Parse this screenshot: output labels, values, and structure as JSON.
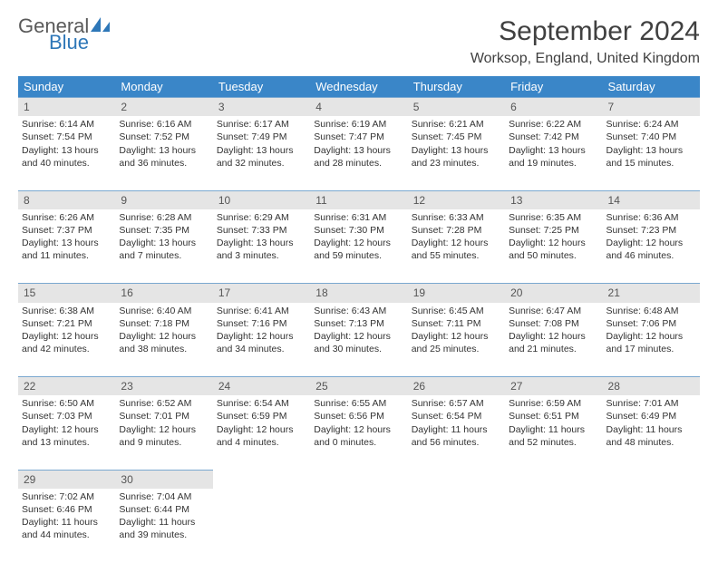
{
  "logo": {
    "text_general": "General",
    "text_blue": "Blue",
    "icon_color": "#2e77b8"
  },
  "header": {
    "month_title": "September 2024",
    "location": "Worksop, England, United Kingdom"
  },
  "styling": {
    "header_bg": "#3a86c8",
    "header_text": "#ffffff",
    "daynum_bg": "#e5e5e5",
    "daynum_border": "#7aa8d0",
    "body_text": "#333333",
    "page_bg": "#ffffff",
    "title_color": "#404040",
    "cell_fontsize": 10.5,
    "title_fontsize": 30,
    "location_fontsize": 16,
    "header_fontsize": 13
  },
  "columns": [
    "Sunday",
    "Monday",
    "Tuesday",
    "Wednesday",
    "Thursday",
    "Friday",
    "Saturday"
  ],
  "weeks": [
    {
      "nums": [
        "1",
        "2",
        "3",
        "4",
        "5",
        "6",
        "7"
      ],
      "cells": [
        {
          "sunrise": "6:14 AM",
          "sunset": "7:54 PM",
          "dl1": "13 hours",
          "dl2": "and 40 minutes."
        },
        {
          "sunrise": "6:16 AM",
          "sunset": "7:52 PM",
          "dl1": "13 hours",
          "dl2": "and 36 minutes."
        },
        {
          "sunrise": "6:17 AM",
          "sunset": "7:49 PM",
          "dl1": "13 hours",
          "dl2": "and 32 minutes."
        },
        {
          "sunrise": "6:19 AM",
          "sunset": "7:47 PM",
          "dl1": "13 hours",
          "dl2": "and 28 minutes."
        },
        {
          "sunrise": "6:21 AM",
          "sunset": "7:45 PM",
          "dl1": "13 hours",
          "dl2": "and 23 minutes."
        },
        {
          "sunrise": "6:22 AM",
          "sunset": "7:42 PM",
          "dl1": "13 hours",
          "dl2": "and 19 minutes."
        },
        {
          "sunrise": "6:24 AM",
          "sunset": "7:40 PM",
          "dl1": "13 hours",
          "dl2": "and 15 minutes."
        }
      ]
    },
    {
      "nums": [
        "8",
        "9",
        "10",
        "11",
        "12",
        "13",
        "14"
      ],
      "cells": [
        {
          "sunrise": "6:26 AM",
          "sunset": "7:37 PM",
          "dl1": "13 hours",
          "dl2": "and 11 minutes."
        },
        {
          "sunrise": "6:28 AM",
          "sunset": "7:35 PM",
          "dl1": "13 hours",
          "dl2": "and 7 minutes."
        },
        {
          "sunrise": "6:29 AM",
          "sunset": "7:33 PM",
          "dl1": "13 hours",
          "dl2": "and 3 minutes."
        },
        {
          "sunrise": "6:31 AM",
          "sunset": "7:30 PM",
          "dl1": "12 hours",
          "dl2": "and 59 minutes."
        },
        {
          "sunrise": "6:33 AM",
          "sunset": "7:28 PM",
          "dl1": "12 hours",
          "dl2": "and 55 minutes."
        },
        {
          "sunrise": "6:35 AM",
          "sunset": "7:25 PM",
          "dl1": "12 hours",
          "dl2": "and 50 minutes."
        },
        {
          "sunrise": "6:36 AM",
          "sunset": "7:23 PM",
          "dl1": "12 hours",
          "dl2": "and 46 minutes."
        }
      ]
    },
    {
      "nums": [
        "15",
        "16",
        "17",
        "18",
        "19",
        "20",
        "21"
      ],
      "cells": [
        {
          "sunrise": "6:38 AM",
          "sunset": "7:21 PM",
          "dl1": "12 hours",
          "dl2": "and 42 minutes."
        },
        {
          "sunrise": "6:40 AM",
          "sunset": "7:18 PM",
          "dl1": "12 hours",
          "dl2": "and 38 minutes."
        },
        {
          "sunrise": "6:41 AM",
          "sunset": "7:16 PM",
          "dl1": "12 hours",
          "dl2": "and 34 minutes."
        },
        {
          "sunrise": "6:43 AM",
          "sunset": "7:13 PM",
          "dl1": "12 hours",
          "dl2": "and 30 minutes."
        },
        {
          "sunrise": "6:45 AM",
          "sunset": "7:11 PM",
          "dl1": "12 hours",
          "dl2": "and 25 minutes."
        },
        {
          "sunrise": "6:47 AM",
          "sunset": "7:08 PM",
          "dl1": "12 hours",
          "dl2": "and 21 minutes."
        },
        {
          "sunrise": "6:48 AM",
          "sunset": "7:06 PM",
          "dl1": "12 hours",
          "dl2": "and 17 minutes."
        }
      ]
    },
    {
      "nums": [
        "22",
        "23",
        "24",
        "25",
        "26",
        "27",
        "28"
      ],
      "cells": [
        {
          "sunrise": "6:50 AM",
          "sunset": "7:03 PM",
          "dl1": "12 hours",
          "dl2": "and 13 minutes."
        },
        {
          "sunrise": "6:52 AM",
          "sunset": "7:01 PM",
          "dl1": "12 hours",
          "dl2": "and 9 minutes."
        },
        {
          "sunrise": "6:54 AM",
          "sunset": "6:59 PM",
          "dl1": "12 hours",
          "dl2": "and 4 minutes."
        },
        {
          "sunrise": "6:55 AM",
          "sunset": "6:56 PM",
          "dl1": "12 hours",
          "dl2": "and 0 minutes."
        },
        {
          "sunrise": "6:57 AM",
          "sunset": "6:54 PM",
          "dl1": "11 hours",
          "dl2": "and 56 minutes."
        },
        {
          "sunrise": "6:59 AM",
          "sunset": "6:51 PM",
          "dl1": "11 hours",
          "dl2": "and 52 minutes."
        },
        {
          "sunrise": "7:01 AM",
          "sunset": "6:49 PM",
          "dl1": "11 hours",
          "dl2": "and 48 minutes."
        }
      ]
    },
    {
      "nums": [
        "29",
        "30",
        "",
        "",
        "",
        "",
        ""
      ],
      "cells": [
        {
          "sunrise": "7:02 AM",
          "sunset": "6:46 PM",
          "dl1": "11 hours",
          "dl2": "and 44 minutes."
        },
        {
          "sunrise": "7:04 AM",
          "sunset": "6:44 PM",
          "dl1": "11 hours",
          "dl2": "and 39 minutes."
        },
        null,
        null,
        null,
        null,
        null
      ]
    }
  ],
  "labels": {
    "sunrise_prefix": "Sunrise: ",
    "sunset_prefix": "Sunset: ",
    "daylight_prefix": "Daylight: "
  }
}
